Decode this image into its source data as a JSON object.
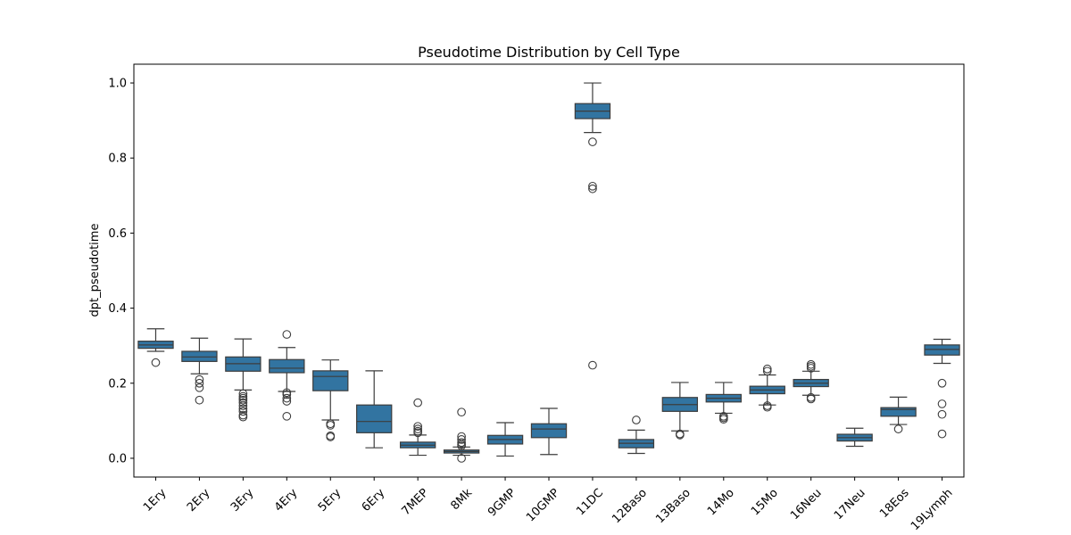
{
  "chart_data": {
    "type": "boxplot",
    "title": "Pseudotime Distribution by Cell Type",
    "xlabel": "",
    "ylabel": "dpt_pseudotime",
    "ylim": [
      -0.05,
      1.05
    ],
    "yticks": [
      0.0,
      0.2,
      0.4,
      0.6,
      0.8,
      1.0
    ],
    "ytick_labels": [
      "0.0",
      "0.2",
      "0.4",
      "0.6",
      "0.8",
      "1.0"
    ],
    "grid": false,
    "x_tick_rotation_deg": 45,
    "box_color": "#3274a1",
    "line_color": "#3d3d3d",
    "categories": [
      "1Ery",
      "2Ery",
      "3Ery",
      "4Ery",
      "5Ery",
      "6Ery",
      "7MEP",
      "8Mk",
      "9GMP",
      "10GMP",
      "11DC",
      "12Baso",
      "13Baso",
      "14Mo",
      "15Mo",
      "16Neu",
      "17Neu",
      "18Eos",
      "19Lymph"
    ],
    "boxes": [
      {
        "category": "1Ery",
        "whisker_low": 0.285,
        "q1": 0.293,
        "median": 0.302,
        "q3": 0.312,
        "whisker_high": 0.345,
        "outliers": [
          0.255
        ]
      },
      {
        "category": "2Ery",
        "whisker_low": 0.225,
        "q1": 0.258,
        "median": 0.27,
        "q3": 0.285,
        "whisker_high": 0.32,
        "outliers": [
          0.21,
          0.2,
          0.188,
          0.155
        ]
      },
      {
        "category": "3Ery",
        "whisker_low": 0.182,
        "q1": 0.232,
        "median": 0.252,
        "q3": 0.27,
        "whisker_high": 0.318,
        "outliers": [
          0.172,
          0.165,
          0.16,
          0.155,
          0.148,
          0.14,
          0.132,
          0.125,
          0.115,
          0.11
        ]
      },
      {
        "category": "4Ery",
        "whisker_low": 0.178,
        "q1": 0.228,
        "median": 0.24,
        "q3": 0.263,
        "whisker_high": 0.295,
        "outliers": [
          0.33,
          0.175,
          0.17,
          0.16,
          0.152,
          0.112
        ]
      },
      {
        "category": "5Ery",
        "whisker_low": 0.102,
        "q1": 0.18,
        "median": 0.218,
        "q3": 0.233,
        "whisker_high": 0.262,
        "outliers": [
          0.092,
          0.088,
          0.06,
          0.057
        ]
      },
      {
        "category": "6Ery",
        "whisker_low": 0.028,
        "q1": 0.068,
        "median": 0.098,
        "q3": 0.142,
        "whisker_high": 0.233,
        "outliers": []
      },
      {
        "category": "7MEP",
        "whisker_low": 0.008,
        "q1": 0.028,
        "median": 0.035,
        "q3": 0.043,
        "whisker_high": 0.062,
        "outliers": [
          0.148,
          0.085,
          0.078,
          0.072,
          0.068
        ]
      },
      {
        "category": "8Mk",
        "whisker_low": 0.008,
        "q1": 0.014,
        "median": 0.018,
        "q3": 0.022,
        "whisker_high": 0.03,
        "outliers": [
          0.123,
          0.058,
          0.05,
          0.042,
          0.037,
          0.033,
          0.0
        ]
      },
      {
        "category": "9GMP",
        "whisker_low": 0.006,
        "q1": 0.038,
        "median": 0.05,
        "q3": 0.061,
        "whisker_high": 0.095,
        "outliers": []
      },
      {
        "category": "10GMP",
        "whisker_low": 0.01,
        "q1": 0.055,
        "median": 0.078,
        "q3": 0.092,
        "whisker_high": 0.133,
        "outliers": []
      },
      {
        "category": "11DC",
        "whisker_low": 0.868,
        "q1": 0.905,
        "median": 0.925,
        "q3": 0.945,
        "whisker_high": 1.0,
        "outliers": [
          0.843,
          0.725,
          0.718,
          0.248
        ]
      },
      {
        "category": "12Baso",
        "whisker_low": 0.013,
        "q1": 0.028,
        "median": 0.04,
        "q3": 0.05,
        "whisker_high": 0.075,
        "outliers": [
          0.102
        ]
      },
      {
        "category": "13Baso",
        "whisker_low": 0.073,
        "q1": 0.125,
        "median": 0.143,
        "q3": 0.162,
        "whisker_high": 0.202,
        "outliers": [
          0.065,
          0.062
        ]
      },
      {
        "category": "14Mo",
        "whisker_low": 0.12,
        "q1": 0.15,
        "median": 0.16,
        "q3": 0.17,
        "whisker_high": 0.202,
        "outliers": [
          0.112,
          0.108,
          0.104
        ]
      },
      {
        "category": "15Mo",
        "whisker_low": 0.142,
        "q1": 0.172,
        "median": 0.182,
        "q3": 0.192,
        "whisker_high": 0.222,
        "outliers": [
          0.238,
          0.232,
          0.14,
          0.136
        ]
      },
      {
        "category": "16Neu",
        "whisker_low": 0.168,
        "q1": 0.191,
        "median": 0.2,
        "q3": 0.21,
        "whisker_high": 0.232,
        "outliers": [
          0.25,
          0.245,
          0.24,
          0.162,
          0.158
        ]
      },
      {
        "category": "17Neu",
        "whisker_low": 0.032,
        "q1": 0.046,
        "median": 0.055,
        "q3": 0.064,
        "whisker_high": 0.08,
        "outliers": []
      },
      {
        "category": "18Eos",
        "whisker_low": 0.09,
        "q1": 0.112,
        "median": 0.13,
        "q3": 0.135,
        "whisker_high": 0.163,
        "outliers": [
          0.078
        ]
      },
      {
        "category": "19Lymph",
        "whisker_low": 0.253,
        "q1": 0.275,
        "median": 0.29,
        "q3": 0.302,
        "whisker_high": 0.317,
        "outliers": [
          0.2,
          0.145,
          0.117,
          0.065
        ]
      }
    ]
  }
}
